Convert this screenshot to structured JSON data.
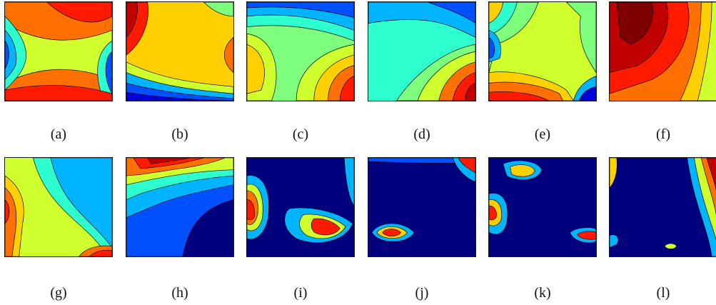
{
  "figure": {
    "panels": [
      {
        "id": "a",
        "caption": "(a)"
      },
      {
        "id": "b",
        "caption": "(b)"
      },
      {
        "id": "c",
        "caption": "(c)"
      },
      {
        "id": "d",
        "caption": "(d)"
      },
      {
        "id": "e",
        "caption": "(e)"
      },
      {
        "id": "f",
        "caption": "(f)"
      },
      {
        "id": "g",
        "caption": "(g)"
      },
      {
        "id": "h",
        "caption": "(h)"
      },
      {
        "id": "i",
        "caption": "(i)"
      },
      {
        "id": "j",
        "caption": "(j)"
      },
      {
        "id": "k",
        "caption": "(k)"
      },
      {
        "id": "l",
        "caption": "(l)"
      }
    ],
    "colormap": [
      "#00007f",
      "#0000d8",
      "#0050ff",
      "#00b4ff",
      "#2dffcf",
      "#7dff7d",
      "#cfff2d",
      "#ffd000",
      "#ff7000",
      "#ff1a00",
      "#c00000",
      "#7f0000"
    ]
  }
}
